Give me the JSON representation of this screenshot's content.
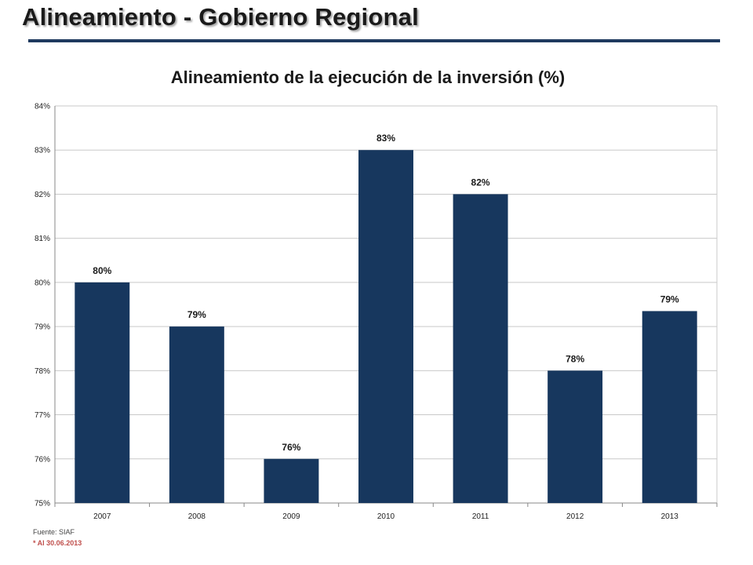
{
  "slide": {
    "title": "Alineamiento - Gobierno Regional",
    "rule_color": "#1f3a5f"
  },
  "chart_data": {
    "type": "bar",
    "title": "Alineamiento de la ejecución de la inversión (%)",
    "xlabel": "",
    "ylabel": "",
    "categories": [
      "2007",
      "2008",
      "2009",
      "2010",
      "2011",
      "2012",
      "2013"
    ],
    "values": [
      80,
      79,
      76,
      83,
      82,
      78,
      79.35
    ],
    "data_labels": [
      "80%",
      "79%",
      "76%",
      "83%",
      "82%",
      "78%",
      "79%"
    ],
    "ylim": [
      75,
      84
    ],
    "yticks": [
      75,
      76,
      77,
      78,
      79,
      80,
      81,
      82,
      83,
      84
    ],
    "ytick_labels": [
      "75%",
      "76%",
      "77%",
      "78%",
      "79%",
      "80%",
      "81%",
      "82%",
      "83%",
      "84%"
    ],
    "grid": true,
    "legend": "none",
    "bar_color": "#17375e"
  },
  "footer": {
    "source": "Fuente: SIAF",
    "note": "* Al 30.06.2013",
    "note_color": "#c0504d"
  }
}
